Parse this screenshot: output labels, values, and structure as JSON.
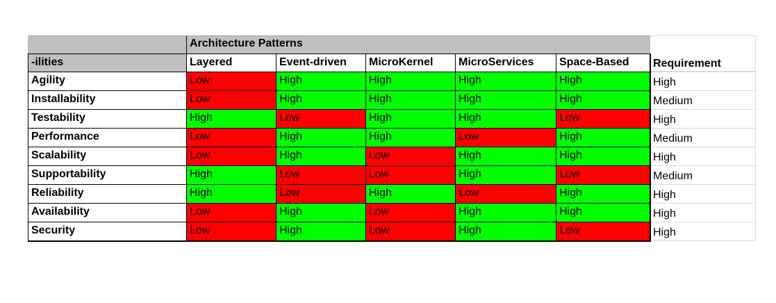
{
  "table": {
    "group_header": "Architecture Patterns",
    "corner_header": "-ilities",
    "patterns": [
      "Layered",
      "Event-driven",
      "MicroKernel",
      "MicroServices",
      "Space-Based"
    ],
    "requirement_header": "Requirement",
    "rows": [
      {
        "ility": "Agility",
        "values": [
          "Low",
          "High",
          "High",
          "High",
          "High"
        ],
        "requirement": "High"
      },
      {
        "ility": "Installability",
        "values": [
          "Low",
          "High",
          "High",
          "High",
          "High"
        ],
        "requirement": "Medium"
      },
      {
        "ility": "Testability",
        "values": [
          "High",
          "Low",
          "High",
          "High",
          "Low"
        ],
        "requirement": "High"
      },
      {
        "ility": "Performance",
        "values": [
          "Low",
          "High",
          "High",
          "Low",
          "High"
        ],
        "requirement": "Medium"
      },
      {
        "ility": "Scalability",
        "values": [
          "Low",
          "High",
          "Low",
          "High",
          "High"
        ],
        "requirement": "High"
      },
      {
        "ility": "Supportability",
        "values": [
          "High",
          "Low",
          "Low",
          "High",
          "Low"
        ],
        "requirement": "Medium"
      },
      {
        "ility": "Reliability",
        "values": [
          "High",
          "Low",
          "High",
          "Low",
          "High"
        ],
        "requirement": "High"
      },
      {
        "ility": "Availability",
        "values": [
          "Low",
          "High",
          "Low",
          "High",
          "High"
        ],
        "requirement": "High"
      },
      {
        "ility": "Security",
        "values": [
          "Low",
          "High",
          "Low",
          "High",
          "Low"
        ],
        "requirement": "High"
      }
    ]
  },
  "colors": {
    "high": "#00ff00",
    "low": "#ff0000",
    "header_gray": "#c0c0c0"
  }
}
